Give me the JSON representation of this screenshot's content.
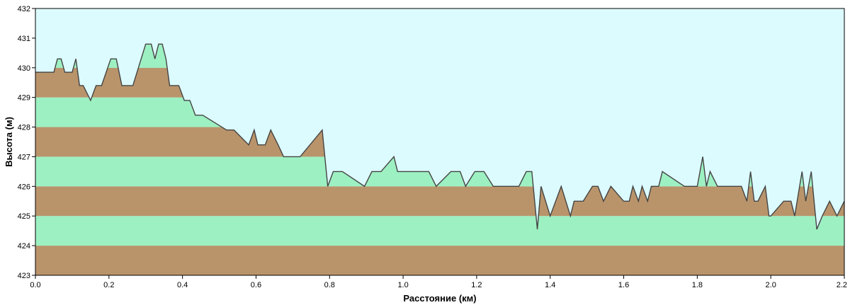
{
  "chart_data": {
    "type": "area",
    "xlabel": "Расстояние  (км)",
    "ylabel": "Высота (м)",
    "xlim": [
      0,
      2.2
    ],
    "ylim": [
      423,
      432
    ],
    "x_ticks": [
      "0.0",
      "0.2",
      "0.4",
      "0.6",
      "0.8",
      "1.0",
      "1.2",
      "1.4",
      "1.6",
      "1.8",
      "2.0",
      "2.2"
    ],
    "y_ticks": [
      "423",
      "424",
      "425",
      "426",
      "427",
      "428",
      "429",
      "430",
      "431",
      "432"
    ],
    "colors": {
      "band_green": "#9df0c2",
      "band_brown": "#b9946b",
      "sky": "#dcfbff",
      "line": "#444444"
    },
    "series": [
      {
        "x": [
          0.0,
          0.05,
          0.06,
          0.07,
          0.08,
          0.1,
          0.11,
          0.12,
          0.13,
          0.15,
          0.165,
          0.18,
          0.205,
          0.22,
          0.235,
          0.25,
          0.265,
          0.3,
          0.315,
          0.325,
          0.335,
          0.345,
          0.355,
          0.365,
          0.39,
          0.405,
          0.42,
          0.435,
          0.455,
          0.52,
          0.54,
          0.58,
          0.595,
          0.605,
          0.615,
          0.625,
          0.64,
          0.66,
          0.675,
          0.7,
          0.72,
          0.78,
          0.795,
          0.81,
          0.835,
          0.895,
          0.915,
          0.94,
          0.975,
          0.985,
          1.07,
          1.09,
          1.13,
          1.155,
          1.17,
          1.195,
          1.22,
          1.245,
          1.315,
          1.335,
          1.35,
          1.365,
          1.375,
          1.4,
          1.43,
          1.455,
          1.465,
          1.49,
          1.515,
          1.53,
          1.545,
          1.565,
          1.6,
          1.615,
          1.625,
          1.64,
          1.65,
          1.665,
          1.675,
          1.695,
          1.705,
          1.765,
          1.8,
          1.815,
          1.825,
          1.835,
          1.855,
          1.92,
          1.935,
          1.945,
          1.955,
          1.965,
          1.985,
          1.995,
          2.0,
          2.035,
          2.055,
          2.065,
          2.085,
          2.095,
          2.11,
          2.125,
          2.14,
          2.16,
          2.18,
          2.2
        ],
        "y": [
          429.85,
          429.85,
          430.3,
          430.3,
          429.85,
          429.85,
          430.3,
          429.4,
          429.4,
          428.9,
          429.4,
          429.4,
          430.3,
          430.3,
          429.4,
          429.4,
          429.4,
          430.8,
          430.8,
          430.3,
          430.8,
          430.8,
          430.3,
          429.4,
          429.4,
          428.9,
          428.9,
          428.4,
          428.4,
          427.9,
          427.9,
          427.4,
          427.9,
          427.4,
          427.4,
          427.4,
          427.9,
          427.4,
          427.0,
          427.0,
          427.0,
          427.9,
          426.0,
          426.5,
          426.5,
          426.0,
          426.5,
          426.5,
          427.0,
          426.5,
          426.5,
          426.0,
          426.5,
          426.5,
          426.0,
          426.5,
          426.5,
          426.0,
          426.0,
          426.5,
          426.5,
          424.55,
          426.0,
          425.0,
          426.0,
          425.0,
          425.5,
          425.5,
          426.0,
          426.0,
          425.5,
          426.0,
          425.5,
          425.5,
          426.0,
          425.5,
          426.0,
          425.5,
          426.0,
          426.0,
          426.5,
          426.0,
          426.0,
          427.0,
          426.0,
          426.5,
          426.0,
          426.0,
          425.5,
          426.5,
          425.5,
          425.5,
          426.0,
          425.0,
          425.0,
          425.5,
          425.5,
          425.0,
          426.5,
          425.5,
          426.5,
          424.55,
          425.0,
          425.5,
          425.0,
          425.5
        ]
      }
    ]
  }
}
